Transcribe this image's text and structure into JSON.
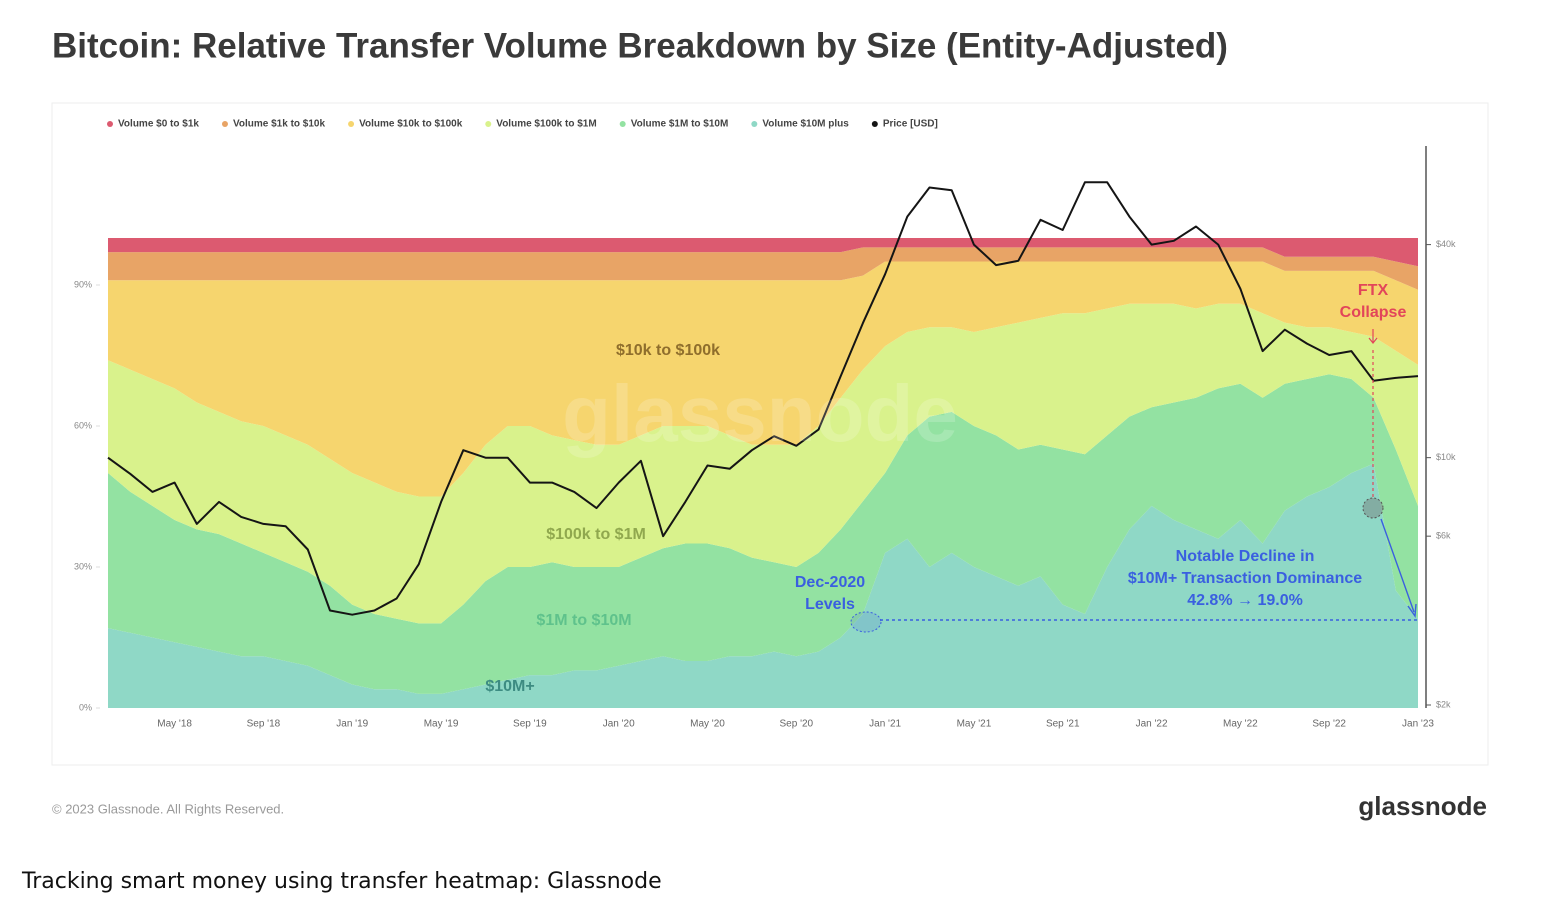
{
  "chart_data": {
    "type": "area",
    "stacked": true,
    "title": "Bitcoin: Relative Transfer Volume Breakdown by Size (Entity-Adjusted)",
    "categories": [
      null,
      null,
      null,
      "May '18",
      null,
      null,
      null,
      "Sep '18",
      null,
      null,
      null,
      "Jan '19",
      null,
      null,
      null,
      "May '19",
      null,
      null,
      null,
      "Sep '19",
      null,
      null,
      null,
      "Jan '20",
      null,
      null,
      null,
      "May '20",
      null,
      null,
      null,
      "Sep '20",
      null,
      null,
      null,
      "Jan '21",
      null,
      null,
      null,
      "May '21",
      null,
      null,
      null,
      "Sep '21",
      null,
      null,
      null,
      "Jan '22",
      null,
      null,
      null,
      "May '22",
      null,
      null,
      null,
      "Sep '22",
      null,
      null,
      null,
      "Jan '23"
    ],
    "series": [
      {
        "name": "Volume $0 to $1k",
        "color": "#dc5a70",
        "values": [
          3,
          3,
          3,
          3,
          3,
          3,
          3,
          3,
          3,
          3,
          3,
          3,
          3,
          3,
          3,
          3,
          3,
          3,
          3,
          3,
          3,
          3,
          3,
          3,
          3,
          3,
          3,
          3,
          3,
          3,
          3,
          3,
          3,
          3,
          2,
          2,
          2,
          2,
          2,
          2,
          2,
          2,
          2,
          2,
          2,
          2,
          2,
          2,
          2,
          2,
          2,
          2,
          2,
          4,
          4,
          4,
          4,
          4,
          5,
          6
        ]
      },
      {
        "name": "Volume $1k to $10k",
        "color": "#e8a466",
        "values": [
          6,
          6,
          6,
          6,
          6,
          6,
          6,
          6,
          6,
          6,
          6,
          6,
          6,
          6,
          6,
          6,
          6,
          6,
          6,
          6,
          6,
          6,
          6,
          6,
          6,
          6,
          6,
          6,
          6,
          6,
          6,
          6,
          6,
          6,
          6,
          3,
          3,
          3,
          3,
          3,
          3,
          3,
          3,
          3,
          3,
          3,
          3,
          3,
          3,
          3,
          3,
          3,
          3,
          3,
          3,
          3,
          3,
          3,
          4,
          5
        ]
      },
      {
        "name": "Volume $10k to $100k",
        "color": "#f6d56e",
        "values": [
          17,
          19,
          21,
          23,
          26,
          28,
          30,
          31,
          33,
          35,
          38,
          41,
          43,
          45,
          46,
          46,
          41,
          35,
          31,
          31,
          33,
          34,
          35,
          35,
          33,
          31,
          31,
          31,
          33,
          35,
          35,
          35,
          31,
          25,
          20,
          18,
          15,
          14,
          14,
          15,
          14,
          13,
          12,
          11,
          11,
          10,
          9,
          9,
          9,
          10,
          9,
          9,
          11,
          11,
          12,
          12,
          13,
          14,
          15,
          16
        ]
      },
      {
        "name": "Volume $100k to $1M",
        "color": "#d9f28c",
        "values": [
          24,
          26,
          27,
          28,
          27,
          26,
          26,
          27,
          27,
          27,
          27,
          28,
          28,
          27,
          27,
          27,
          28,
          29,
          30,
          30,
          27,
          27,
          26,
          26,
          26,
          26,
          25,
          25,
          24,
          24,
          25,
          26,
          27,
          28,
          28,
          27,
          22,
          19,
          18,
          20,
          23,
          27,
          27,
          29,
          30,
          27,
          24,
          22,
          21,
          19,
          18,
          17,
          18,
          13,
          11,
          10,
          10,
          13,
          21,
          30
        ]
      },
      {
        "name": "Volume $1M to $10M",
        "color": "#93e2a2",
        "values": [
          33,
          30,
          28,
          26,
          25,
          25,
          24,
          22,
          21,
          20,
          19,
          17,
          16,
          15,
          15,
          15,
          18,
          22,
          24,
          23,
          24,
          22,
          22,
          21,
          22,
          23,
          25,
          25,
          23,
          21,
          19,
          19,
          21,
          23,
          24,
          17,
          22,
          32,
          30,
          30,
          30,
          29,
          28,
          33,
          34,
          28,
          24,
          21,
          25,
          28,
          32,
          29,
          31,
          27,
          25,
          24,
          20,
          14,
          30,
          24
        ]
      },
      {
        "name": "Volume $10M plus",
        "color": "#8fd8c6",
        "values": [
          17,
          16,
          15,
          14,
          13,
          12,
          11,
          11,
          10,
          9,
          7,
          5,
          4,
          4,
          3,
          3,
          4,
          5,
          6,
          7,
          7,
          8,
          8,
          9,
          10,
          11,
          10,
          10,
          11,
          11,
          12,
          11,
          12,
          15,
          20,
          33,
          36,
          30,
          33,
          30,
          28,
          26,
          28,
          22,
          20,
          30,
          38,
          43,
          40,
          38,
          36,
          40,
          35,
          42,
          45,
          47,
          50,
          52,
          25,
          19
        ]
      },
      {
        "name": "Price [USD]",
        "color": "#151515",
        "axis": "y2",
        "values": [
          10000,
          9000,
          8000,
          8500,
          6500,
          7500,
          6800,
          6500,
          6400,
          5500,
          3700,
          3600,
          3700,
          4000,
          5000,
          7500,
          10500,
          10000,
          10000,
          8500,
          8500,
          8000,
          7200,
          8500,
          9800,
          6000,
          7500,
          9500,
          9300,
          10500,
          11500,
          10800,
          12000,
          17000,
          24000,
          33000,
          48000,
          58000,
          57000,
          40000,
          35000,
          36000,
          47000,
          44000,
          60000,
          60000,
          48000,
          40000,
          41000,
          45000,
          40000,
          30000,
          20000,
          23000,
          21000,
          19500,
          20000,
          16500,
          16800,
          17000
        ]
      }
    ],
    "ylim": [
      0,
      100
    ],
    "yticks": [
      {
        "value": 0,
        "label": "0%"
      },
      {
        "value": 30,
        "label": "30%"
      },
      {
        "value": 60,
        "label": "60%"
      },
      {
        "value": 90,
        "label": "90%"
      }
    ],
    "y2lim": [
      2000,
      75000
    ],
    "y2log": true,
    "y2ticks": [
      {
        "value": 2000,
        "label": "$2k"
      },
      {
        "value": 6000,
        "label": "$6k"
      },
      {
        "value": 10000,
        "label": "$10k"
      },
      {
        "value": 40000,
        "label": "$40k"
      }
    ],
    "legend": "top",
    "watermark": "glassnode",
    "annotations": [
      {
        "text": "$10k to $100k"
      },
      {
        "text": "$100k to $1M"
      },
      {
        "text": "$1M to $10M"
      },
      {
        "text": "$10M+"
      },
      {
        "lines": [
          "FTX",
          "Collapse"
        ]
      },
      {
        "lines": [
          "Dec-2020",
          "Levels"
        ]
      },
      {
        "lines": [
          "Notable Decline in",
          "$10M+ Transaction Dominance",
          "42.8% → 19.0%"
        ]
      }
    ]
  },
  "footer": {
    "copyright": "© 2023 Glassnode. All Rights Reserved.",
    "brand": "glassnode"
  },
  "caption": "Tracking smart money using transfer heatmap: Glassnode"
}
